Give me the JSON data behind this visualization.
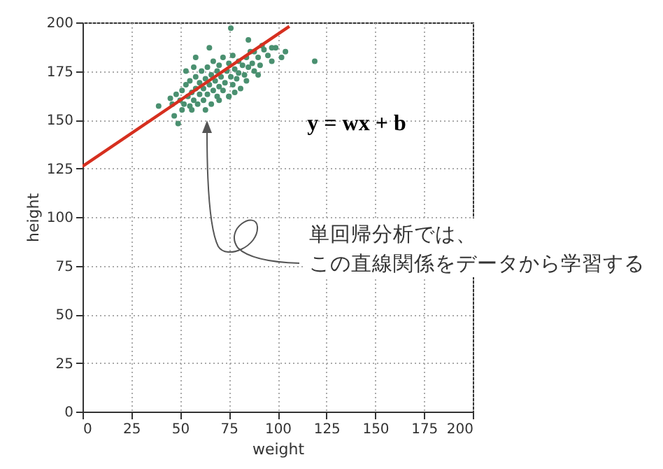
{
  "chart_data": {
    "type": "scatter",
    "xlabel": "weight",
    "ylabel": "height",
    "xlim": [
      0,
      200
    ],
    "ylim": [
      0,
      200
    ],
    "xticks": [
      0,
      25,
      50,
      75,
      100,
      125,
      150,
      175,
      200
    ],
    "yticks": [
      0,
      25,
      50,
      75,
      100,
      125,
      150,
      175,
      200
    ],
    "grid": true,
    "marker": "circle",
    "annotations": [
      "y = wx + b",
      "単回帰分析では、",
      "この直線関係をデータから学習する"
    ],
    "series": [
      {
        "color": "#4a9070",
        "x": [
          50,
          51,
          52,
          53,
          54,
          55,
          55,
          56,
          57,
          58,
          58,
          59,
          60,
          60,
          61,
          62,
          62,
          63,
          64,
          64,
          65,
          66,
          66,
          67,
          67,
          68,
          69,
          69,
          70,
          70,
          71,
          72,
          72,
          73,
          74,
          75,
          75,
          76,
          77,
          77,
          78,
          79,
          80,
          80,
          81,
          82,
          83,
          84,
          85,
          86,
          87,
          88,
          90,
          91,
          93,
          95,
          97,
          99,
          48,
          46,
          45,
          53,
          57,
          63,
          70,
          78,
          84,
          76,
          119,
          39,
          49,
          47,
          102,
          104,
          97,
          85,
          90,
          75,
          65,
          58,
          51,
          56,
          92,
          88
        ],
        "values": [
          160,
          165,
          158,
          168,
          162,
          157,
          170,
          164,
          160,
          166,
          172,
          158,
          163,
          169,
          175,
          160,
          166,
          171,
          163,
          177,
          168,
          158,
          173,
          165,
          180,
          170,
          162,
          175,
          167,
          178,
          172,
          165,
          182,
          169,
          175,
          162,
          179,
          172,
          168,
          183,
          176,
          171,
          180,
          174,
          166,
          178,
          173,
          182,
          177,
          185,
          179,
          175,
          182,
          178,
          186,
          183,
          180,
          187,
          163,
          158,
          161,
          175,
          177,
          155,
          160,
          164,
          170,
          197,
          180,
          157,
          148,
          152,
          182,
          185,
          187,
          191,
          173,
          162,
          187,
          182,
          155,
          155,
          188,
          185
        ]
      },
      {
        "type": "line",
        "marker": "none",
        "color": "#d62f1f",
        "x": [
          0,
          106
        ],
        "values": [
          126,
          198
        ]
      }
    ]
  }
}
